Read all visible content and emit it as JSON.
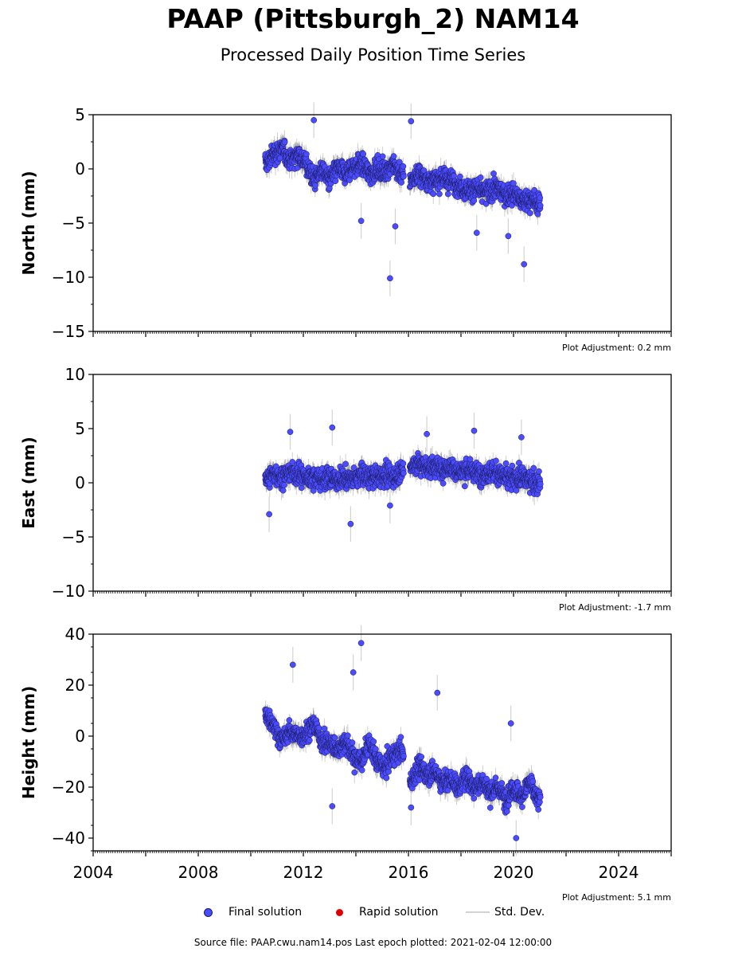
{
  "header": {
    "title": "PAAP (Pittsburgh_2) NAM14",
    "subtitle": "Processed Daily Position Time Series"
  },
  "legend": {
    "final": "Final solution",
    "rapid": "Rapid solution",
    "stddev": "Std. Dev."
  },
  "footer": "Source file: PAAP.cwu.nam14.pos  Last epoch plotted: 2021-02-04 12:00:00",
  "colors": {
    "final": "#4b4bff",
    "final_edge": "#1a1a5a",
    "rapid": "#e00000",
    "stddev": "#d3d3d3"
  },
  "chart_data": [
    {
      "type": "scatter",
      "ylabel": "North (mm)",
      "ylim": [
        -15,
        5
      ],
      "yticks": [
        5,
        0,
        -5,
        -10,
        -15
      ],
      "xlim": [
        2004,
        2026
      ],
      "adjustment": "Plot Adjustment: 0.2 mm",
      "series": [
        {
          "name": "Final solution",
          "x": [
            2010.6,
            2010.9,
            2011.2,
            2011.5,
            2011.8,
            2012.1,
            2012.4,
            2012.7,
            2013.0,
            2013.3,
            2013.6,
            2013.9,
            2014.2,
            2014.5,
            2014.8,
            2015.1,
            2015.4,
            2015.7,
            2016.1,
            2016.4,
            2016.7,
            2017.0,
            2017.3,
            2017.6,
            2017.9,
            2018.2,
            2018.5,
            2018.8,
            2019.1,
            2019.4,
            2019.7,
            2020.0,
            2020.3,
            2020.6,
            2020.9
          ],
          "y": [
            0.5,
            1.5,
            1.8,
            0.8,
            1.5,
            0.5,
            -1.0,
            0.0,
            -1.0,
            0.0,
            -0.5,
            0.2,
            0.5,
            -0.5,
            0.0,
            -0.2,
            0.5,
            -0.5,
            -1.0,
            -0.5,
            -1.0,
            -1.2,
            -0.8,
            -1.0,
            -1.5,
            -2.0,
            -1.8,
            -2.2,
            -2.0,
            -1.8,
            -2.5,
            -2.2,
            -3.0,
            -2.8,
            -3.2
          ],
          "outliers": [
            [
              2012.4,
              4.5
            ],
            [
              2016.1,
              4.4
            ],
            [
              2015.3,
              -10.1
            ],
            [
              2014.2,
              -4.8
            ],
            [
              2015.5,
              -5.3
            ],
            [
              2020.4,
              -8.8
            ],
            [
              2018.6,
              -5.9
            ],
            [
              2019.8,
              -6.2
            ]
          ]
        }
      ]
    },
    {
      "type": "scatter",
      "ylabel": "East (mm)",
      "ylim": [
        -10,
        10
      ],
      "yticks": [
        10,
        5,
        0,
        -5,
        -10
      ],
      "xlim": [
        2004,
        2026
      ],
      "adjustment": "Plot Adjustment: -1.7 mm",
      "series": [
        {
          "name": "Final solution",
          "x": [
            2010.6,
            2010.9,
            2011.2,
            2011.5,
            2011.8,
            2012.1,
            2012.4,
            2012.7,
            2013.0,
            2013.3,
            2013.6,
            2013.9,
            2014.2,
            2014.5,
            2014.8,
            2015.1,
            2015.4,
            2015.7,
            2016.1,
            2016.4,
            2016.7,
            2017.0,
            2017.3,
            2017.6,
            2017.9,
            2018.2,
            2018.5,
            2018.8,
            2019.1,
            2019.4,
            2019.7,
            2020.0,
            2020.3,
            2020.6,
            2020.9
          ],
          "y": [
            0.5,
            0.8,
            0.5,
            1.0,
            0.8,
            0.5,
            0.5,
            0.3,
            0.5,
            0.2,
            0.5,
            0.3,
            0.8,
            0.5,
            0.5,
            0.8,
            0.5,
            1.0,
            1.5,
            1.8,
            1.5,
            1.5,
            1.2,
            1.5,
            1.0,
            1.2,
            1.0,
            0.8,
            1.0,
            0.8,
            0.5,
            0.3,
            0.5,
            0.3,
            0.0
          ],
          "outliers": [
            [
              2013.1,
              5.1
            ],
            [
              2011.5,
              4.7
            ],
            [
              2010.7,
              -2.9
            ],
            [
              2013.8,
              -3.8
            ],
            [
              2016.7,
              4.5
            ],
            [
              2018.5,
              4.8
            ],
            [
              2020.3,
              4.2
            ],
            [
              2015.3,
              -2.1
            ]
          ]
        }
      ]
    },
    {
      "type": "scatter",
      "ylabel": "Height (mm)",
      "ylim": [
        -45,
        40
      ],
      "yticks": [
        40,
        20,
        0,
        -20,
        -40
      ],
      "xlim": [
        2004,
        2026
      ],
      "xticks": [
        2004,
        2008,
        2012,
        2016,
        2020,
        2024
      ],
      "adjustment": "Plot Adjustment: 5.1 mm",
      "series": [
        {
          "name": "Final solution",
          "x": [
            2010.6,
            2010.9,
            2011.2,
            2011.5,
            2011.8,
            2012.1,
            2012.4,
            2012.7,
            2013.0,
            2013.3,
            2013.6,
            2013.9,
            2014.2,
            2014.5,
            2014.8,
            2015.1,
            2015.4,
            2015.7,
            2016.1,
            2016.4,
            2016.7,
            2017.0,
            2017.3,
            2017.6,
            2017.9,
            2018.2,
            2018.5,
            2018.8,
            2019.1,
            2019.4,
            2019.7,
            2020.0,
            2020.3,
            2020.6,
            2020.9
          ],
          "y": [
            8,
            3,
            -2,
            2,
            0,
            1,
            5,
            -2,
            -3,
            -5,
            -2,
            -8,
            -10,
            -3,
            -10,
            -12,
            -8,
            -5,
            -18,
            -12,
            -15,
            -14,
            -18,
            -17,
            -20,
            -16,
            -20,
            -18,
            -22,
            -20,
            -25,
            -20,
            -24,
            -18,
            -25
          ],
          "outliers": [
            [
              2014.2,
              36.5
            ],
            [
              2011.6,
              28
            ],
            [
              2013.9,
              25
            ],
            [
              2017.1,
              17
            ],
            [
              2013.1,
              -27.5
            ],
            [
              2019.9,
              5
            ],
            [
              2020.1,
              -40
            ],
            [
              2016.1,
              -28
            ]
          ]
        }
      ]
    }
  ]
}
